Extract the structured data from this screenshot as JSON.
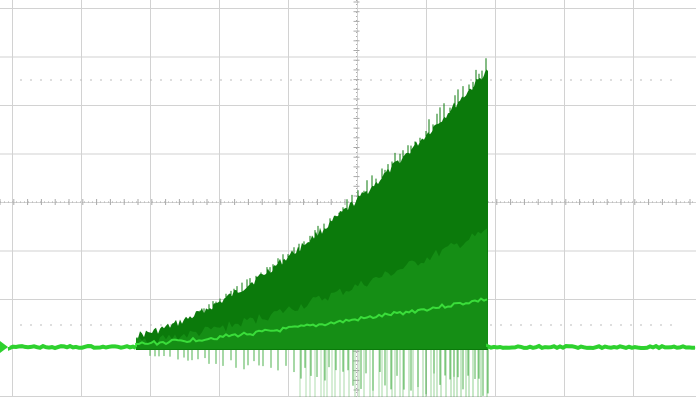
{
  "screen": {
    "background": "#ffffff",
    "grid_color": "#d2d2d2",
    "center_line_color": "#aaaaaa",
    "dots_color": "#bdbdbd",
    "grid": {
      "divisions_x": 10,
      "divisions_y": 8,
      "subdivisions": 5
    }
  },
  "trace": {
    "color_envelope": "#0b7a0b",
    "color_mid": "#1f9f1f",
    "color_bright": "#3ee63e",
    "color_baseline": "#2ed12e",
    "color_spikes": "#47b047",
    "marker_icon": "ground-level-marker-icon"
  }
}
